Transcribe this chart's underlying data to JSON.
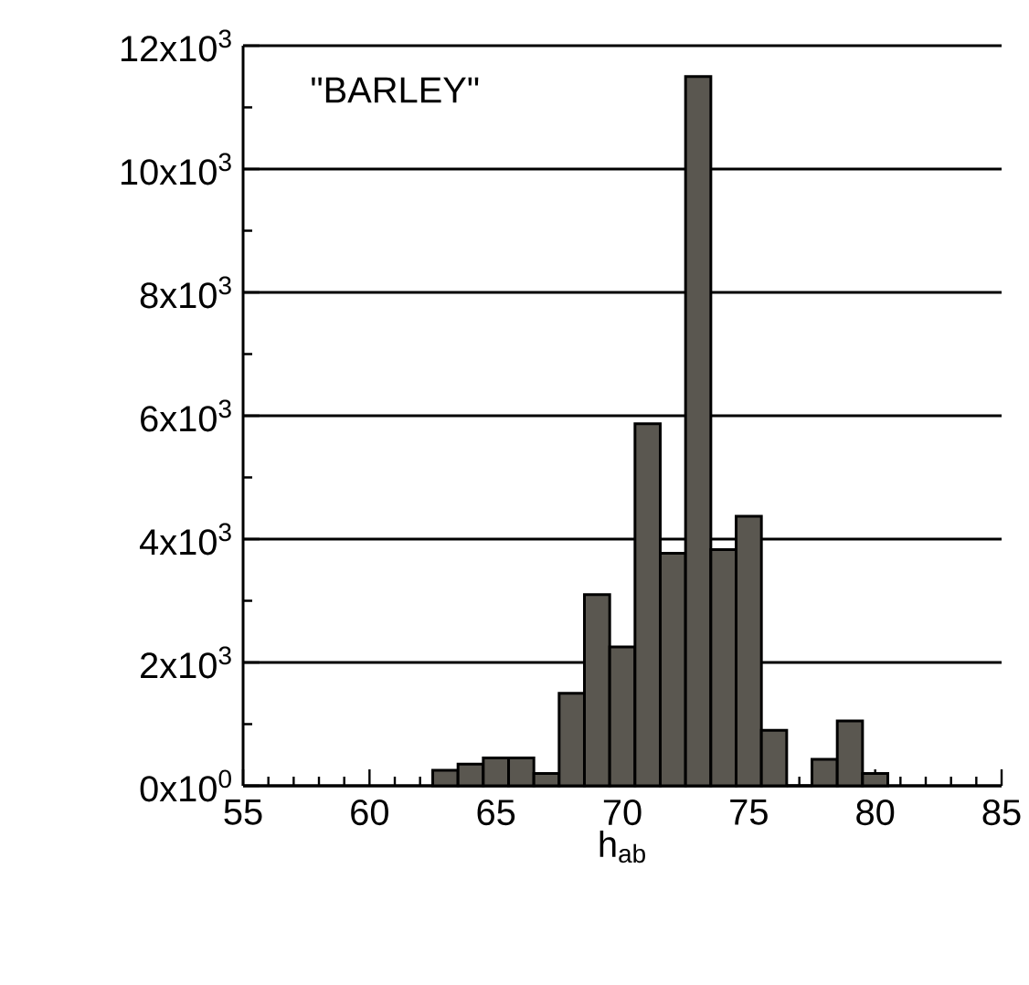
{
  "chart_data": {
    "type": "histogram",
    "xlabel": "h$_{ab}$",
    "annotations": [
      "\"BARLEY\""
    ],
    "bins": [
      62.5,
      63.5,
      64.5,
      65.5,
      66.5,
      67.5,
      68.5,
      69.5,
      70.5,
      71.5,
      72.5,
      73.5,
      74.5,
      75.5,
      76.5,
      77.5,
      78.5,
      79.5,
      80.5
    ],
    "values": [
      250,
      350,
      450,
      450,
      200,
      1500,
      3100,
      2250,
      5870,
      3770,
      11500,
      3830,
      4370,
      900,
      0,
      430,
      1050,
      200
    ],
    "color": "#5a5750",
    "xlim": [
      55,
      85
    ],
    "xticks": [
      55,
      60,
      65,
      70,
      75,
      80,
      85
    ],
    "ylim": [
      0,
      12000
    ],
    "yticks": [
      {
        "value": 0,
        "label": "0x10$^{0}$"
      },
      {
        "value": 2000,
        "label": "2x10$^{3}$"
      },
      {
        "value": 4000,
        "label": "4x10$^{3}$"
      },
      {
        "value": 6000,
        "label": "6x10$^{3}$"
      },
      {
        "value": 8000,
        "label": "8x10$^{3}$"
      },
      {
        "value": 10000,
        "label": "10x10$^{3}$"
      },
      {
        "value": 12000,
        "label": "12x10$^{3}$"
      }
    ],
    "grid": "y"
  }
}
